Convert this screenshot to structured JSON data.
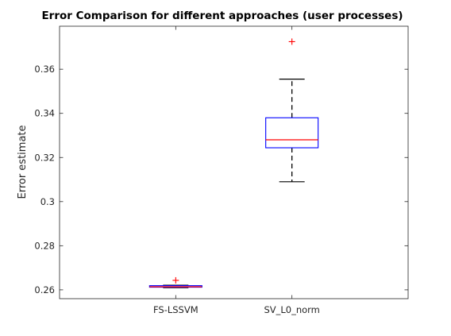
{
  "chart_data": {
    "type": "box",
    "title": "Error Comparison for different approaches (user processes)",
    "xlabel": "",
    "ylabel": "Error estimate",
    "ylim": [
      0.256,
      0.3795
    ],
    "yticks": [
      0.26,
      0.28,
      0.3,
      0.32,
      0.34,
      0.36
    ],
    "ytick_labels": [
      "0.26",
      "0.28",
      "0.3",
      "0.32",
      "0.34",
      "0.36"
    ],
    "grid": false,
    "categories": [
      "FS-LSSVM",
      "SV_L0_norm"
    ],
    "boxes": [
      {
        "category": "FS-LSSVM",
        "whisker_low": 0.261,
        "q1": 0.2612,
        "median": 0.2614,
        "q3": 0.2619,
        "whisker_high": 0.2621,
        "outliers": [
          0.2643
        ]
      },
      {
        "category": "SV_L0_norm",
        "whisker_low": 0.309,
        "q1": 0.3244,
        "median": 0.328,
        "q3": 0.338,
        "whisker_high": 0.3555,
        "outliers": [
          0.3725
        ]
      }
    ],
    "colors": {
      "box": "#0000ff",
      "median": "#ff0000",
      "whisker": "#000000",
      "outlier": "#ff0000",
      "axis": "#262626"
    }
  }
}
